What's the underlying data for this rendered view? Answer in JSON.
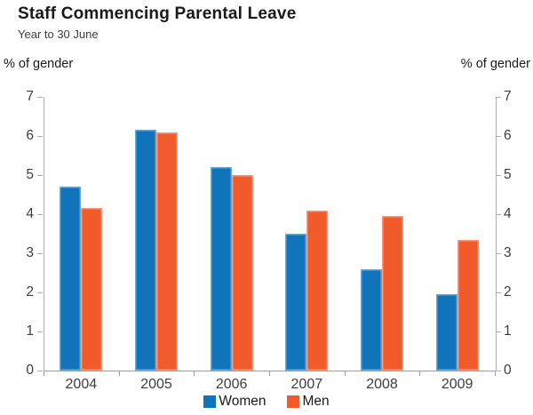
{
  "header": {
    "title": "Staff Commencing Parental Leave",
    "subtitle": "Year to 30 June"
  },
  "chart_data": {
    "type": "bar",
    "title": "Staff Commencing Parental Leave",
    "subtitle": "Year to 30 June",
    "ylabel_left": "% of gender",
    "ylabel_right": "% of gender",
    "categories": [
      "2004",
      "2005",
      "2006",
      "2007",
      "2008",
      "2009"
    ],
    "series": [
      {
        "name": "Women",
        "color": "#1173B9",
        "values": [
          4.7,
          6.15,
          5.2,
          3.5,
          2.6,
          1.95
        ]
      },
      {
        "name": "Men",
        "color": "#F15B2C",
        "values": [
          4.15,
          6.1,
          5.0,
          4.1,
          3.95,
          3.35
        ]
      }
    ],
    "ylim": [
      0,
      7
    ],
    "ytick_step": 1,
    "yticks": [
      0,
      1,
      2,
      3,
      4,
      5,
      6,
      7
    ],
    "grid": false,
    "dual_axis_labels": true,
    "legend_position": "bottom-center",
    "colors": {
      "axis_line": "#b0b0b0",
      "tick_text": "#3d3d3d",
      "title_text": "#1a1a1a"
    }
  }
}
